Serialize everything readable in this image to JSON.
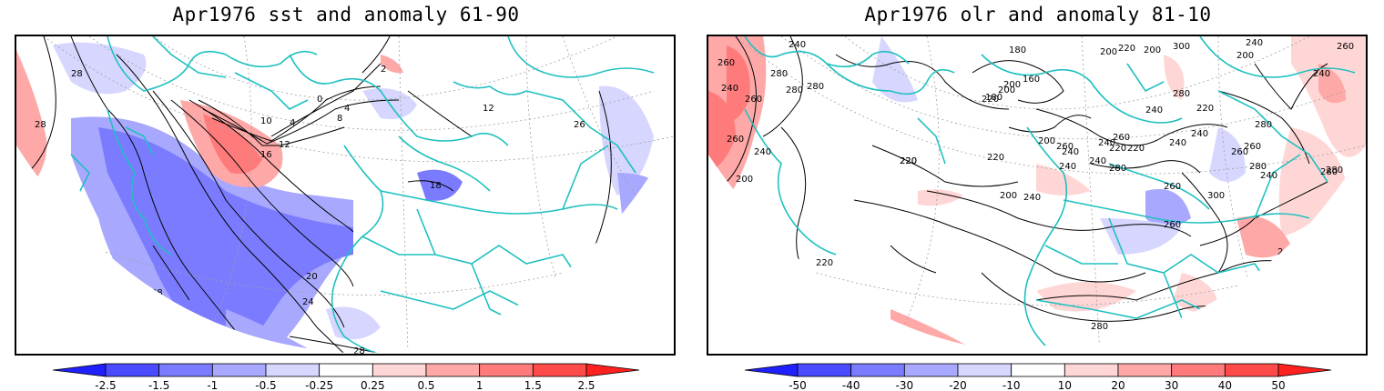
{
  "panels": [
    {
      "title": "Apr1976 sst and anomaly 61-90",
      "field": "sst",
      "contour_labels": [
        "28",
        "28",
        "2",
        "0",
        "10",
        "4",
        "4",
        "8",
        "12",
        "16",
        "12",
        "18",
        "26",
        "20",
        "24",
        "28",
        "28"
      ],
      "colorbar": {
        "ticks": [
          "-2.5",
          "-1.5",
          "-1",
          "-0.5",
          "-0.25",
          "0.25",
          "0.5",
          "1",
          "1.5",
          "2.5"
        ],
        "colors": [
          "#2020ff",
          "#4a4aff",
          "#7b7bff",
          "#a8a8ff",
          "#d6d6ff",
          "#ffffff",
          "#ffd6d6",
          "#ffa8a8",
          "#ff7b7b",
          "#ff4a4a",
          "#ff2020"
        ]
      }
    },
    {
      "title": "Apr1976 olr and anomaly 81-10",
      "field": "olr",
      "contour_labels": [
        "240",
        "260",
        "280",
        "280",
        "260",
        "280",
        "240",
        "180",
        "160",
        "200",
        "220",
        "200",
        "300",
        "240",
        "260",
        "240",
        "200",
        "180",
        "200",
        "200",
        "220",
        "280",
        "240",
        "220",
        "240",
        "220",
        "240",
        "260",
        "240",
        "260",
        "280",
        "220",
        "240",
        "280",
        "260",
        "200",
        "240",
        "240",
        "260",
        "300",
        "240",
        "260",
        "280",
        "280",
        "220",
        "280",
        "260",
        "240",
        "260",
        "220",
        "220",
        "200",
        "240",
        "260",
        "240",
        "200",
        "220",
        "280"
      ],
      "colorbar": {
        "ticks": [
          "-50",
          "-40",
          "-30",
          "-20",
          "-10",
          "10",
          "20",
          "30",
          "40",
          "50"
        ],
        "colors": [
          "#2020ff",
          "#4a4aff",
          "#7b7bff",
          "#a8a8ff",
          "#d6d6ff",
          "#ffffff",
          "#ffd6d6",
          "#ffa8a8",
          "#ff7b7b",
          "#ff4a4a",
          "#ff2020"
        ]
      }
    }
  ],
  "colors": {
    "coast": "#20c0c0",
    "contour": "#000000",
    "grid": "#a0a0a0",
    "frame": "#000000"
  }
}
